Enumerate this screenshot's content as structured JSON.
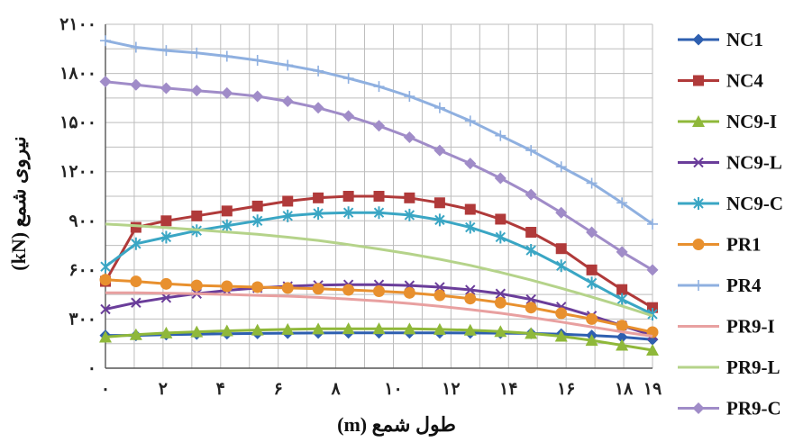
{
  "chart_data": {
    "type": "line",
    "xlabel": "طول شمع (m)",
    "ylabel": "نیروی شمع (kN)",
    "xlim": [
      0,
      19
    ],
    "ylim": [
      0,
      2100
    ],
    "x_ticks": [
      0,
      2,
      4,
      6,
      8,
      10,
      12,
      14,
      16,
      18,
      19
    ],
    "x_tick_labels": [
      "۰",
      "۲",
      "۴",
      "۶",
      "۸",
      "۱۰",
      "۱۲",
      "۱۴",
      "۱۶",
      "۱۸",
      "۱۹"
    ],
    "y_ticks": [
      0,
      300,
      600,
      900,
      1200,
      1500,
      1800,
      2100
    ],
    "y_tick_labels": [
      "۰",
      "۳۰۰",
      "۶۰۰",
      "۹۰۰",
      "۱۲۰۰",
      "۱۵۰۰",
      "۱۸۰۰",
      "۲۱۰۰"
    ],
    "grid": true,
    "legend_position": "right",
    "x": [
      0,
      1.06,
      2.11,
      3.17,
      4.22,
      5.28,
      6.33,
      7.39,
      8.44,
      9.5,
      10.56,
      11.61,
      12.67,
      13.72,
      14.78,
      15.83,
      16.89,
      17.94,
      19
    ],
    "series": [
      {
        "name": "NC1",
        "color": "#2e5fb0",
        "marker": "diamond",
        "values": [
          200,
          200,
          205,
          208,
          210,
          212,
          214,
          215,
          216,
          216,
          216,
          216,
          215,
          214,
          212,
          208,
          200,
          190,
          175
        ]
      },
      {
        "name": "NC4",
        "color": "#b03a3a",
        "marker": "square",
        "values": [
          530,
          860,
          900,
          930,
          960,
          990,
          1020,
          1040,
          1050,
          1050,
          1040,
          1010,
          970,
          910,
          830,
          730,
          600,
          480,
          370
        ]
      },
      {
        "name": "NC9-I",
        "color": "#8fb83a",
        "marker": "triangle",
        "values": [
          190,
          205,
          215,
          222,
          228,
          233,
          237,
          240,
          241,
          241,
          240,
          237,
          232,
          224,
          212,
          195,
          170,
          140,
          110
        ]
      },
      {
        "name": "NC9-L",
        "color": "#6a3d9a",
        "marker": "x",
        "values": [
          360,
          400,
          430,
          455,
          475,
          490,
          500,
          507,
          510,
          510,
          505,
          495,
          478,
          455,
          420,
          375,
          320,
          260,
          200
        ]
      },
      {
        "name": "NC9-C",
        "color": "#3aa6c4",
        "marker": "star",
        "values": [
          620,
          760,
          800,
          840,
          870,
          900,
          930,
          945,
          950,
          950,
          935,
          905,
          860,
          800,
          720,
          625,
          520,
          420,
          330
        ]
      },
      {
        "name": "PR1",
        "color": "#e8902e",
        "marker": "circle",
        "values": [
          540,
          530,
          515,
          505,
          500,
          495,
          490,
          485,
          478,
          470,
          460,
          445,
          425,
          400,
          370,
          335,
          300,
          260,
          220
        ]
      },
      {
        "name": "PR4",
        "color": "#8fb0e0",
        "marker": "plus",
        "values": [
          2000,
          1960,
          1940,
          1925,
          1905,
          1880,
          1850,
          1815,
          1770,
          1720,
          1660,
          1590,
          1510,
          1420,
          1330,
          1230,
          1130,
          1010,
          880
        ]
      },
      {
        "name": "PR9-I",
        "color": "#e8a0a0",
        "marker": "none",
        "values": [
          460,
          460,
          458,
          455,
          450,
          445,
          440,
          432,
          422,
          410,
          395,
          378,
          358,
          336,
          310,
          282,
          252,
          222,
          195
        ]
      },
      {
        "name": "PR9-L",
        "color": "#b5d38a",
        "marker": "none",
        "values": [
          880,
          870,
          858,
          845,
          832,
          818,
          800,
          780,
          755,
          728,
          698,
          665,
          628,
          585,
          538,
          488,
          435,
          380,
          320
        ]
      },
      {
        "name": "PR9-C",
        "color": "#a08cc8",
        "marker": "diamond",
        "values": [
          1750,
          1730,
          1710,
          1695,
          1680,
          1660,
          1630,
          1590,
          1540,
          1480,
          1410,
          1330,
          1250,
          1160,
          1060,
          950,
          830,
          710,
          600
        ]
      }
    ]
  }
}
